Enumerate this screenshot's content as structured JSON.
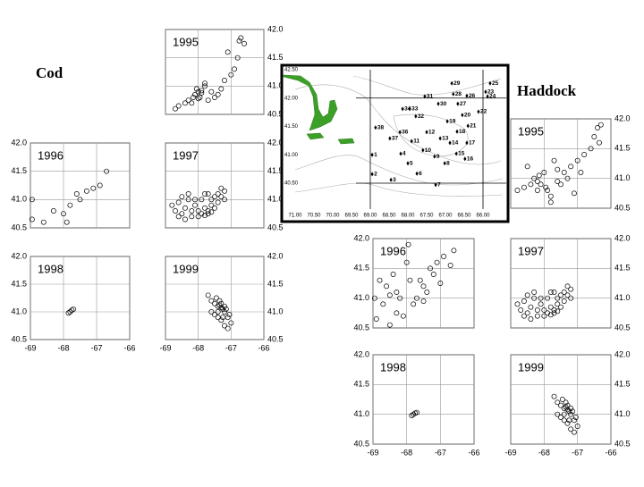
{
  "groups": [
    "Cod",
    "Haddock"
  ],
  "chart_data": [
    {
      "type": "scatter",
      "title": "1995",
      "y_axis_side": "right",
      "x_tick_labels": false,
      "grid": true,
      "color": "#000000",
      "x": [
        -68.1,
        -68.0,
        -67.95,
        -68.05,
        -67.9,
        -68.15,
        -67.8,
        -67.7,
        -68.2,
        -68.4,
        -68.6,
        -68.7,
        -67.6,
        -67.5,
        -67.2,
        -67.0,
        -66.9,
        -66.8,
        -66.7,
        -66.75,
        -67.1,
        -67.3,
        -66.6,
        -67.8,
        -68.3,
        -67.4,
        -68.0,
        -67.9
      ],
      "y": [
        40.85,
        40.9,
        40.8,
        40.95,
        40.88,
        40.8,
        41.0,
        40.75,
        40.7,
        40.7,
        40.65,
        40.6,
        40.9,
        40.8,
        41.1,
        41.2,
        41.3,
        41.5,
        41.85,
        41.8,
        41.6,
        40.95,
        41.75,
        41.05,
        40.75,
        40.85,
        40.78,
        40.92
      ],
      "xlim": [
        -69,
        -66
      ],
      "ylim": [
        40.5,
        42
      ],
      "xticks": [
        -69,
        -68,
        -67,
        -66
      ],
      "yticks": [
        40.5,
        {
          "value": 41,
          "label": "41.0"
        },
        41.5,
        {
          "value": 42,
          "label": "42.0"
        }
      ]
    },
    {
      "type": "scatter",
      "title": "1996",
      "y_axis_side": "left",
      "x_tick_labels": false,
      "grid": true,
      "color": "#000000",
      "x": [
        -68.95,
        -68.95,
        -68.6,
        -68.3,
        -67.8,
        -67.6,
        -67.5,
        -67.3,
        -67.1,
        -66.9,
        -66.7,
        -67.9,
        -68.0
      ],
      "y": [
        41.0,
        40.65,
        40.6,
        40.8,
        40.9,
        41.1,
        41.0,
        41.15,
        41.2,
        41.25,
        41.5,
        40.6,
        40.75
      ],
      "xlim": [
        -69,
        -66
      ],
      "ylim": [
        40.5,
        42
      ],
      "xticks": [
        -69,
        -68,
        -67,
        -66
      ],
      "yticks": [
        40.5,
        {
          "value": 41,
          "label": "41.0"
        },
        41.5,
        {
          "value": 42,
          "label": "42.0"
        }
      ]
    },
    {
      "type": "scatter",
      "title": "1997",
      "y_axis_side": "right",
      "x_tick_labels": false,
      "grid": true,
      "color": "#000000",
      "x": [
        -68.8,
        -68.7,
        -68.6,
        -68.5,
        -68.4,
        -68.3,
        -68.2,
        -68.1,
        -68.0,
        -67.9,
        -67.8,
        -67.7,
        -67.6,
        -67.5,
        -67.4,
        -67.3,
        -67.2,
        -68.6,
        -68.4,
        -68.2,
        -68.0,
        -67.8,
        -67.6,
        -67.4,
        -67.2,
        -68.5,
        -68.3,
        -68.1,
        -67.9,
        -67.7,
        -67.5,
        -67.3,
        -67.7,
        -67.6,
        -67.8
      ],
      "y": [
        40.9,
        40.8,
        40.95,
        40.75,
        40.85,
        41.0,
        40.8,
        40.9,
        40.7,
        41.0,
        40.85,
        40.75,
        40.9,
        41.05,
        41.1,
        41.2,
        41.15,
        40.7,
        40.65,
        40.7,
        40.8,
        41.1,
        41.0,
        40.95,
        41.0,
        41.05,
        41.1,
        41.0,
        40.75,
        41.1,
        40.85,
        41.05,
        40.8,
        40.78,
        40.72
      ],
      "xlim": [
        -69,
        -66
      ],
      "ylim": [
        40.5,
        42
      ],
      "xticks": [
        -69,
        -68,
        -67,
        -66
      ],
      "yticks": [
        40.5,
        {
          "value": 41,
          "label": "41.0"
        },
        41.5,
        {
          "value": 42,
          "label": "42.0"
        }
      ]
    },
    {
      "type": "scatter",
      "title": "1998",
      "y_axis_side": "left",
      "x_tick_labels": true,
      "grid": true,
      "color": "#000000",
      "x": [
        -67.85,
        -67.8,
        -67.75,
        -67.7
      ],
      "y": [
        40.98,
        41.0,
        41.03,
        41.05
      ],
      "xlim": [
        -69,
        -66
      ],
      "ylim": [
        40.5,
        42
      ],
      "xticks": [
        -69,
        -68,
        -67,
        -66
      ],
      "yticks": [
        40.5,
        {
          "value": 41,
          "label": "41.0"
        },
        41.5,
        {
          "value": 42,
          "label": "42.0"
        }
      ]
    },
    {
      "type": "scatter",
      "title": "1999",
      "y_axis_side": "right",
      "x_tick_labels": true,
      "grid": true,
      "color": "#000000",
      "x": [
        -67.7,
        -67.6,
        -67.5,
        -67.4,
        -67.35,
        -67.3,
        -67.25,
        -67.2,
        -67.1,
        -67.0,
        -67.5,
        -67.4,
        -67.3,
        -67.2,
        -67.1,
        -67.6,
        -67.45,
        -67.35,
        -67.15,
        -67.05,
        -67.3,
        -67.2,
        -67.4,
        -67.25
      ],
      "y": [
        41.3,
        41.2,
        41.15,
        41.1,
        41.12,
        41.08,
        41.05,
        41.0,
        40.9,
        40.8,
        40.95,
        40.9,
        40.85,
        40.75,
        40.7,
        41.0,
        41.25,
        41.2,
        41.05,
        40.95,
        41.15,
        41.1,
        41.0,
        40.9
      ],
      "xlim": [
        -69,
        -66
      ],
      "ylim": [
        40.5,
        42
      ],
      "xticks": [
        -69,
        -68,
        -67,
        -66
      ],
      "yticks": [
        40.5,
        {
          "value": 41,
          "label": "41.0"
        },
        41.5,
        {
          "value": 42,
          "label": "42.0"
        }
      ]
    },
    {
      "type": "scatter",
      "title": "1995",
      "y_axis_side": "right",
      "x_tick_labels": false,
      "grid": true,
      "color": "#000000",
      "x": [
        -68.8,
        -68.6,
        -68.4,
        -68.3,
        -68.2,
        -68.15,
        -68.1,
        -68.0,
        -67.9,
        -67.8,
        -67.6,
        -67.4,
        -67.2,
        -67.0,
        -66.8,
        -66.6,
        -66.5,
        -66.4,
        -66.3,
        -66.35,
        -67.7,
        -67.5,
        -67.3,
        -67.1,
        -66.9,
        -68.5,
        -68.2,
        -67.95,
        -67.6,
        -67.8
      ],
      "y": [
        40.8,
        40.85,
        40.9,
        41.0,
        40.95,
        41.05,
        40.9,
        41.1,
        40.8,
        40.7,
        40.95,
        41.1,
        41.2,
        41.3,
        41.4,
        41.5,
        41.7,
        41.85,
        41.9,
        41.6,
        41.3,
        40.9,
        41.0,
        40.75,
        41.1,
        41.2,
        40.8,
        40.85,
        41.15,
        40.6
      ],
      "xlim": [
        -69,
        -66
      ],
      "ylim": [
        40.5,
        42
      ],
      "xticks": [
        -69,
        -68,
        -67,
        -66
      ],
      "yticks": [
        40.5,
        {
          "value": 41,
          "label": "41.0"
        },
        41.5,
        {
          "value": 42,
          "label": "42.0"
        }
      ]
    },
    {
      "type": "scatter",
      "title": "1996",
      "y_axis_side": "left",
      "x_tick_labels": false,
      "grid": true,
      "color": "#000000",
      "x": [
        -68.95,
        -68.9,
        -68.7,
        -68.5,
        -68.3,
        -68.1,
        -67.9,
        -67.7,
        -67.5,
        -67.3,
        -67.1,
        -66.9,
        -66.7,
        -66.6,
        -68.6,
        -68.4,
        -68.2,
        -68.0,
        -67.8,
        -67.6,
        -67.4,
        -67.2,
        -68.8,
        -68.3,
        -67.95,
        -67.5,
        -68.5,
        -67.0
      ],
      "y": [
        41.0,
        40.65,
        40.9,
        40.55,
        41.1,
        40.7,
        41.3,
        41.0,
        41.2,
        41.5,
        41.6,
        41.7,
        41.55,
        41.8,
        41.2,
        41.4,
        41.0,
        41.6,
        40.9,
        41.3,
        41.1,
        41.4,
        41.3,
        40.75,
        41.9,
        40.95,
        41.05,
        41.25
      ],
      "xlim": [
        -69,
        -66
      ],
      "ylim": [
        40.5,
        42
      ],
      "xticks": [
        -69,
        -68,
        -67,
        -66
      ],
      "yticks": [
        40.5,
        {
          "value": 41,
          "label": "41.0"
        },
        41.5,
        {
          "value": 42,
          "label": "42.0"
        }
      ]
    },
    {
      "type": "scatter",
      "title": "1997",
      "y_axis_side": "right",
      "x_tick_labels": false,
      "grid": true,
      "color": "#000000",
      "x": [
        -68.8,
        -68.7,
        -68.6,
        -68.5,
        -68.4,
        -68.3,
        -68.2,
        -68.1,
        -68.0,
        -67.9,
        -67.8,
        -67.7,
        -67.6,
        -67.5,
        -67.4,
        -67.3,
        -67.2,
        -68.6,
        -68.4,
        -68.2,
        -68.0,
        -67.8,
        -67.6,
        -67.4,
        -67.2,
        -68.5,
        -68.3,
        -68.1,
        -67.9,
        -67.7,
        -67.5,
        -67.3,
        -67.7,
        -67.6,
        -67.8
      ],
      "y": [
        40.9,
        40.8,
        40.95,
        40.75,
        40.85,
        41.0,
        40.8,
        40.9,
        40.7,
        41.0,
        40.85,
        40.75,
        40.9,
        41.05,
        41.1,
        41.2,
        41.15,
        40.7,
        40.65,
        40.7,
        40.8,
        41.1,
        41.0,
        40.95,
        41.0,
        41.05,
        41.1,
        41.0,
        40.75,
        41.1,
        40.85,
        41.05,
        40.8,
        40.78,
        40.72
      ],
      "xlim": [
        -69,
        -66
      ],
      "ylim": [
        40.5,
        42
      ],
      "xticks": [
        -69,
        -68,
        -67,
        -66
      ],
      "yticks": [
        40.5,
        {
          "value": 41,
          "label": "41.0"
        },
        41.5,
        {
          "value": 42,
          "label": "42.0"
        }
      ]
    },
    {
      "type": "scatter",
      "title": "1998",
      "y_axis_side": "left",
      "x_tick_labels": true,
      "grid": true,
      "color": "#000000",
      "x": [
        -67.85,
        -67.8,
        -67.75,
        -67.7
      ],
      "y": [
        40.98,
        41.0,
        41.02,
        41.03
      ],
      "xlim": [
        -69,
        -66
      ],
      "ylim": [
        40.5,
        42
      ],
      "xticks": [
        -69,
        -68,
        -67,
        -66
      ],
      "yticks": [
        40.5,
        {
          "value": 41,
          "label": "41.0"
        },
        41.5,
        {
          "value": 42,
          "label": "42.0"
        }
      ]
    },
    {
      "type": "scatter",
      "title": "1999",
      "y_axis_side": "right",
      "x_tick_labels": true,
      "grid": true,
      "color": "#000000",
      "x": [
        -67.7,
        -67.6,
        -67.5,
        -67.4,
        -67.35,
        -67.3,
        -67.25,
        -67.2,
        -67.1,
        -67.0,
        -67.5,
        -67.4,
        -67.3,
        -67.2,
        -67.1,
        -67.6,
        -67.45,
        -67.35,
        -67.15,
        -67.05,
        -67.3,
        -67.2,
        -67.4,
        -67.25
      ],
      "y": [
        41.3,
        41.2,
        41.15,
        41.1,
        41.12,
        41.08,
        41.05,
        41.0,
        40.9,
        40.8,
        40.95,
        40.9,
        40.85,
        40.75,
        40.7,
        41.0,
        41.25,
        41.2,
        41.05,
        40.95,
        41.15,
        41.1,
        41.0,
        40.9
      ],
      "xlim": [
        -69,
        -66
      ],
      "ylim": [
        40.5,
        42
      ],
      "xticks": [
        -69,
        -68,
        -67,
        -66
      ],
      "yticks": [
        40.5,
        {
          "value": 41,
          "label": "41.0"
        },
        41.5,
        {
          "value": 42,
          "label": "42.0"
        }
      ]
    }
  ],
  "map": {
    "lon_ticks": [
      {
        "value": 71,
        "label": "71.00"
      },
      {
        "value": 70.5,
        "label": "70.50"
      },
      {
        "value": 70,
        "label": "70.00"
      },
      {
        "value": 69.5,
        "label": "69.50"
      },
      {
        "value": 69,
        "label": "69.00"
      },
      {
        "value": 68.5,
        "label": "68.50"
      },
      {
        "value": 68,
        "label": "68.00"
      },
      {
        "value": 67.5,
        "label": "67.50"
      },
      {
        "value": 67,
        "label": "67.00"
      },
      {
        "value": 66.5,
        "label": "66.50"
      },
      {
        "value": 66,
        "label": "66.00"
      }
    ],
    "lat_ticks": [
      {
        "value": 42.5,
        "label": "42.50"
      },
      {
        "value": 42,
        "label": "42.00"
      },
      {
        "value": 41.5,
        "label": "41.50"
      },
      {
        "value": 41,
        "label": "41.00"
      },
      {
        "value": 40.5,
        "label": "40.50"
      }
    ],
    "grid_lon": [
      69,
      66
    ],
    "grid_lat": [
      42,
      40.5
    ],
    "stations": [
      {
        "label": "25",
        "lon": 65.81,
        "lat": 42.26
      },
      {
        "label": "29",
        "lon": 66.83,
        "lat": 42.26
      },
      {
        "label": "23",
        "lon": 65.93,
        "lat": 42.11
      },
      {
        "label": "24",
        "lon": 65.88,
        "lat": 42.03
      },
      {
        "label": "28",
        "lon": 66.79,
        "lat": 42.07
      },
      {
        "label": "26",
        "lon": 66.43,
        "lat": 42.04
      },
      {
        "label": "31",
        "lon": 67.55,
        "lat": 42.03
      },
      {
        "label": "27",
        "lon": 66.67,
        "lat": 41.9
      },
      {
        "label": "30",
        "lon": 67.19,
        "lat": 41.9
      },
      {
        "label": "22",
        "lon": 66.12,
        "lat": 41.76
      },
      {
        "label": "34",
        "lon": 68.14,
        "lat": 41.81
      },
      {
        "label": "33",
        "lon": 67.95,
        "lat": 41.81
      },
      {
        "label": "32",
        "lon": 67.79,
        "lat": 41.68
      },
      {
        "label": "19",
        "lon": 66.95,
        "lat": 41.59
      },
      {
        "label": "20",
        "lon": 66.55,
        "lat": 41.7
      },
      {
        "label": "21",
        "lon": 66.4,
        "lat": 41.51
      },
      {
        "label": "38",
        "lon": 68.86,
        "lat": 41.48
      },
      {
        "label": "18",
        "lon": 66.69,
        "lat": 41.41
      },
      {
        "label": "12",
        "lon": 67.5,
        "lat": 41.4
      },
      {
        "label": "36",
        "lon": 68.21,
        "lat": 41.4
      },
      {
        "label": "13",
        "lon": 67.14,
        "lat": 41.29
      },
      {
        "label": "14",
        "lon": 66.88,
        "lat": 41.21
      },
      {
        "label": "17",
        "lon": 66.43,
        "lat": 41.21
      },
      {
        "label": "11",
        "lon": 67.9,
        "lat": 41.24
      },
      {
        "label": "37",
        "lon": 68.48,
        "lat": 41.29
      },
      {
        "label": "10",
        "lon": 67.6,
        "lat": 41.08
      },
      {
        "label": "9",
        "lon": 67.29,
        "lat": 40.97
      },
      {
        "label": "15",
        "lon": 66.71,
        "lat": 41.02
      },
      {
        "label": "16",
        "lon": 66.48,
        "lat": 40.93
      },
      {
        "label": "4",
        "lon": 68.19,
        "lat": 41.02
      },
      {
        "label": "5",
        "lon": 68.0,
        "lat": 40.85
      },
      {
        "label": "8",
        "lon": 67.02,
        "lat": 40.85
      },
      {
        "label": "6",
        "lon": 67.76,
        "lat": 40.67
      },
      {
        "label": "1",
        "lon": 68.95,
        "lat": 41.0
      },
      {
        "label": "2",
        "lon": 68.95,
        "lat": 40.66
      },
      {
        "label": "3",
        "lon": 68.45,
        "lat": 40.56
      },
      {
        "label": "7",
        "lon": 67.26,
        "lat": 40.47
      }
    ]
  }
}
